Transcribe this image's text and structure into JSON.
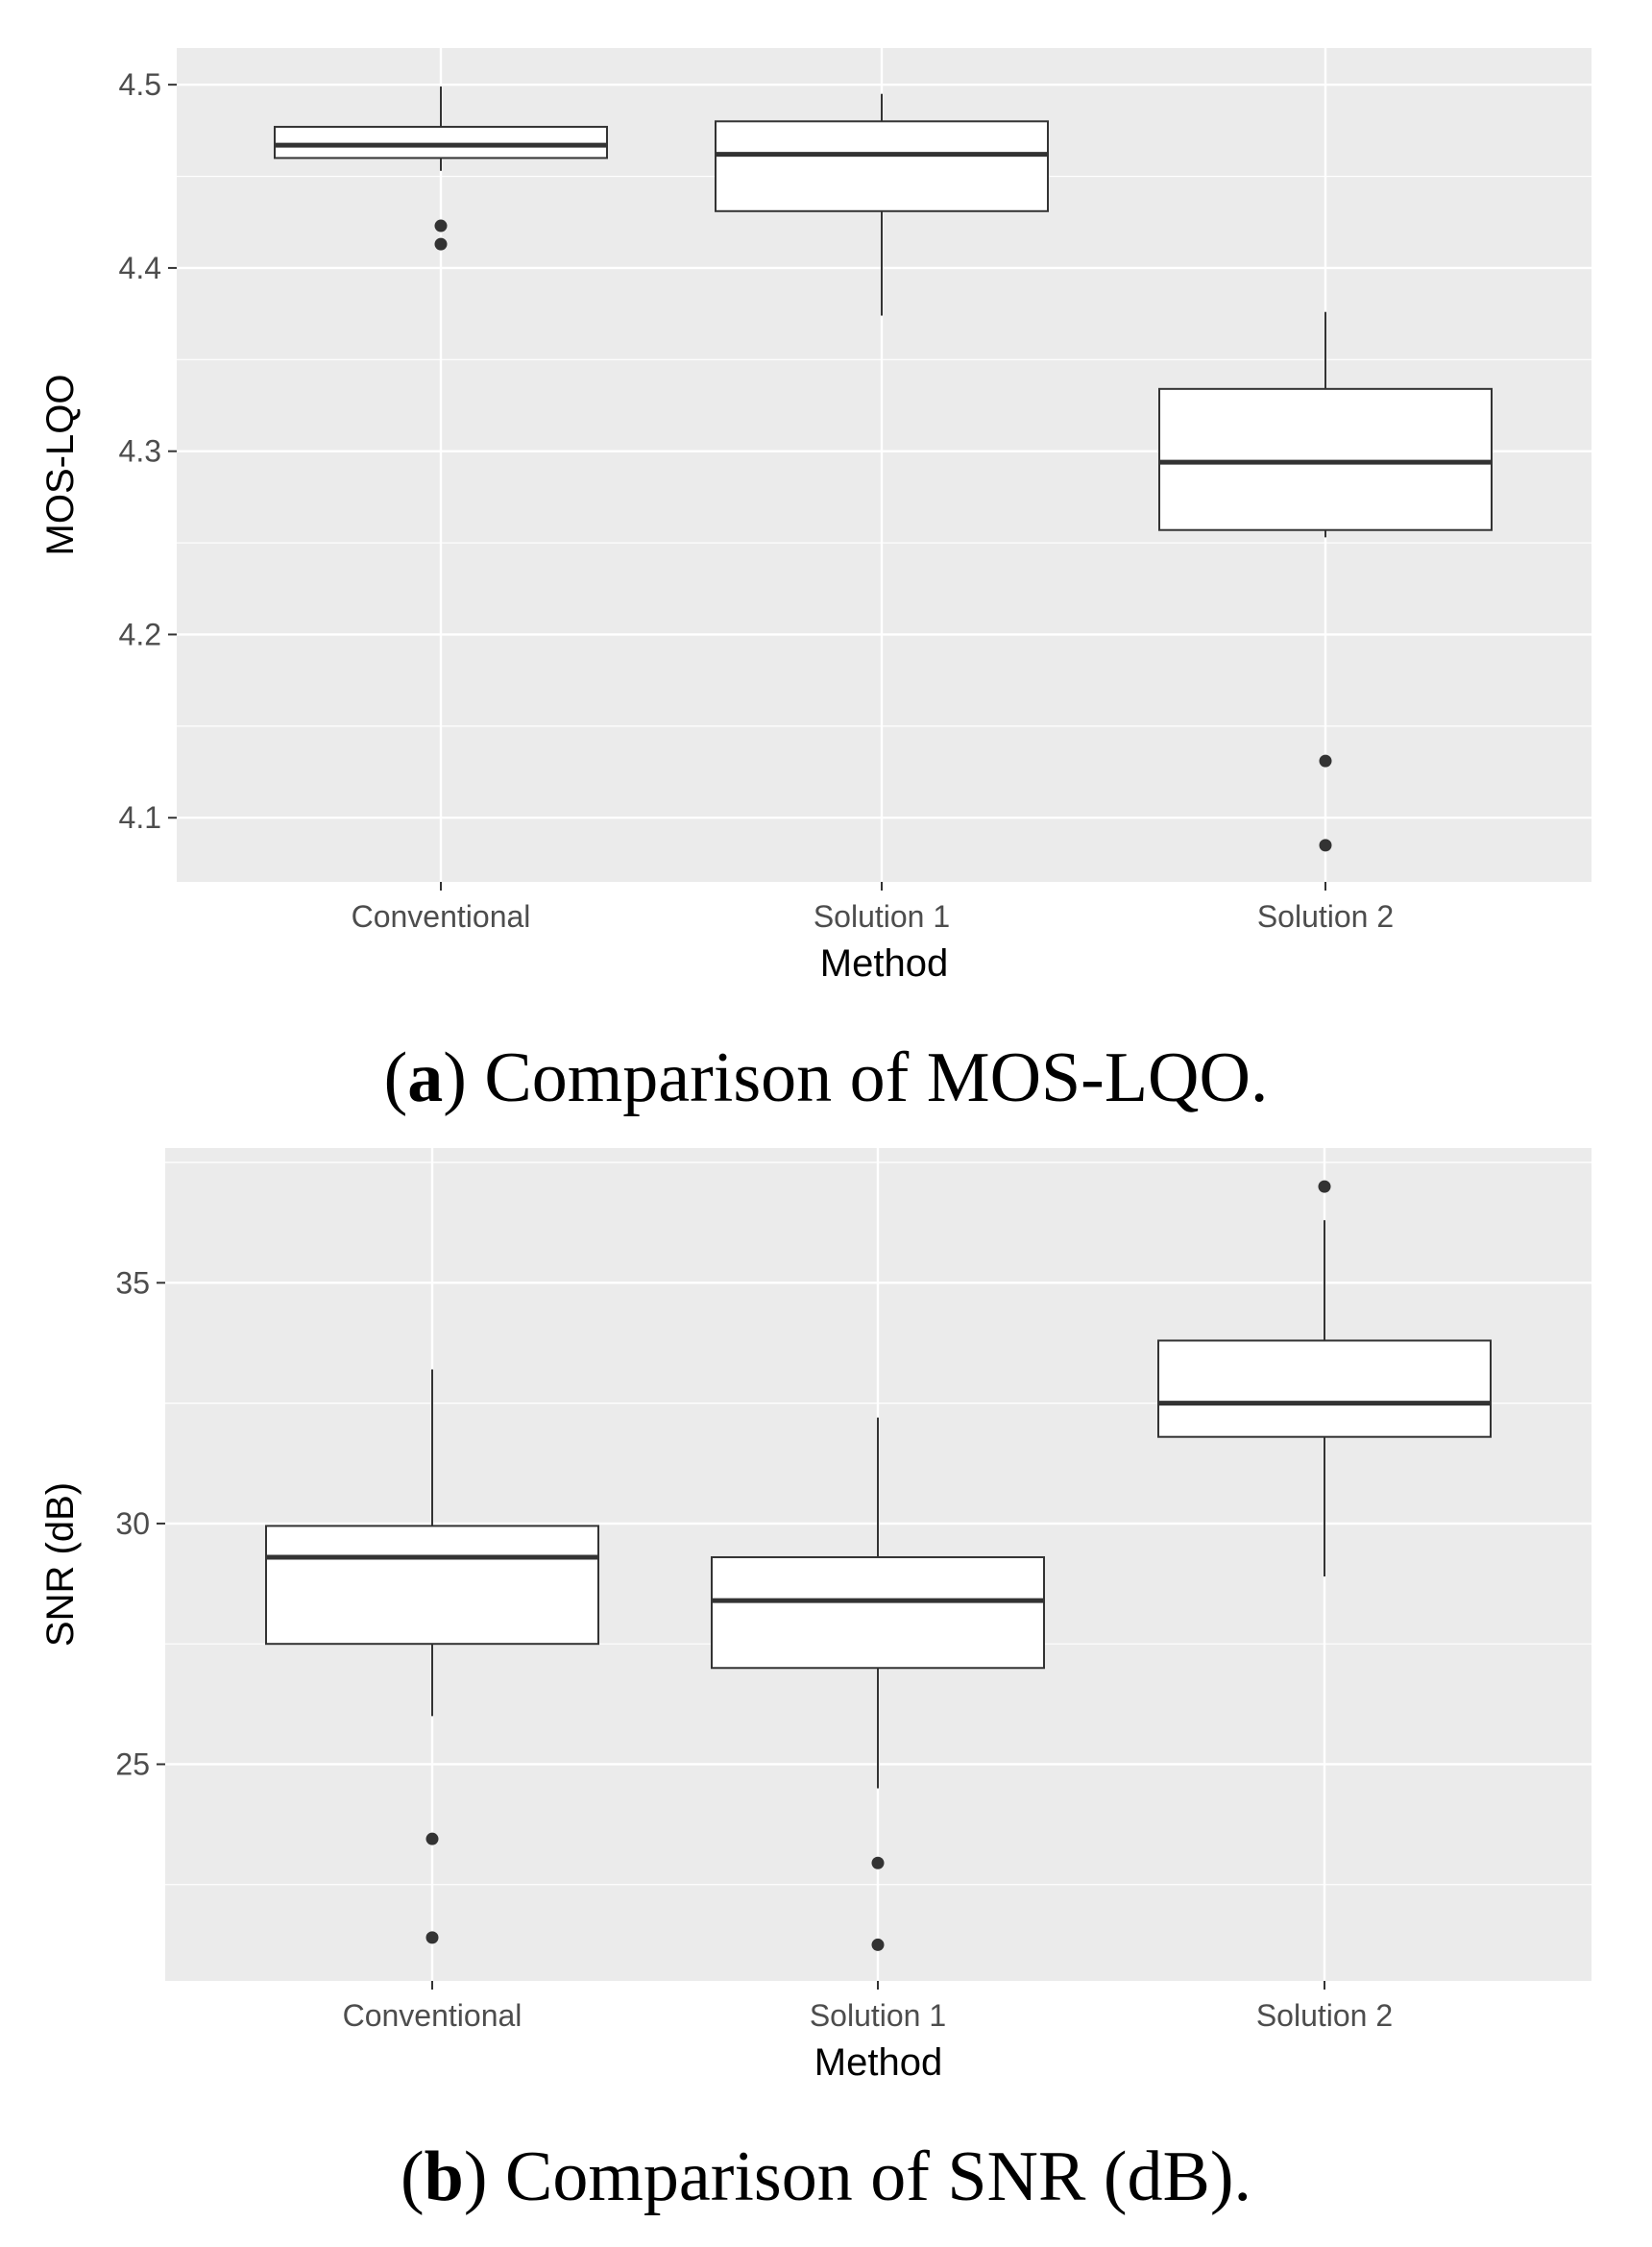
{
  "figure": {
    "panels": [
      {
        "caption": {
          "open": "(",
          "letter": "a",
          "text": ") Comparison of MOS-LQO."
        }
      },
      {
        "caption": {
          "open": "(",
          "letter": "b",
          "text": ") Comparison of SNR (dB)."
        }
      }
    ]
  },
  "colors": {
    "panel_bg": "#ebebeb",
    "grid": "#ffffff",
    "box_fill": "#ffffff",
    "box_line": "#333333",
    "outlier": "#333333"
  },
  "chart_data": [
    {
      "type": "boxplot",
      "title": "",
      "xlabel": "Method",
      "ylabel": "MOS-LQO",
      "categories": [
        "Conventional",
        "Solution 1",
        "Solution 2"
      ],
      "ylim": [
        4.065,
        4.52
      ],
      "yticks": [
        4.1,
        4.2,
        4.3,
        4.4,
        4.5
      ],
      "ytick_labels": [
        "4.1",
        "4.2",
        "4.3",
        "4.4",
        "4.5"
      ],
      "boxes": [
        {
          "category": "Conventional",
          "whisker_low": 4.453,
          "q1": 4.46,
          "median": 4.467,
          "q3": 4.477,
          "whisker_high": 4.499,
          "outliers": [
            4.423,
            4.413
          ]
        },
        {
          "category": "Solution 1",
          "whisker_low": 4.374,
          "q1": 4.431,
          "median": 4.462,
          "q3": 4.48,
          "whisker_high": 4.495,
          "outliers": []
        },
        {
          "category": "Solution 2",
          "whisker_low": 4.253,
          "q1": 4.257,
          "median": 4.294,
          "q3": 4.334,
          "whisker_high": 4.376,
          "outliers": [
            4.131,
            4.085
          ]
        }
      ]
    },
    {
      "type": "boxplot",
      "title": "",
      "xlabel": "Method",
      "ylabel": "SNR (dB)",
      "categories": [
        "Conventional",
        "Solution 1",
        "Solution 2"
      ],
      "ylim": [
        20.5,
        37.8
      ],
      "yticks": [
        25,
        30,
        35
      ],
      "ytick_labels": [
        "25",
        "30",
        "35"
      ],
      "boxes": [
        {
          "category": "Conventional",
          "whisker_low": 26.0,
          "q1": 27.5,
          "median": 29.3,
          "q3": 29.95,
          "whisker_high": 33.2,
          "outliers": [
            23.45,
            21.4
          ]
        },
        {
          "category": "Solution 1",
          "whisker_low": 24.5,
          "q1": 27.0,
          "median": 28.4,
          "q3": 29.3,
          "whisker_high": 32.2,
          "outliers": [
            22.95,
            21.25
          ]
        },
        {
          "category": "Solution 2",
          "whisker_low": 28.9,
          "q1": 31.8,
          "median": 32.5,
          "q3": 33.8,
          "whisker_high": 36.3,
          "outliers": [
            37.0
          ]
        }
      ]
    }
  ]
}
